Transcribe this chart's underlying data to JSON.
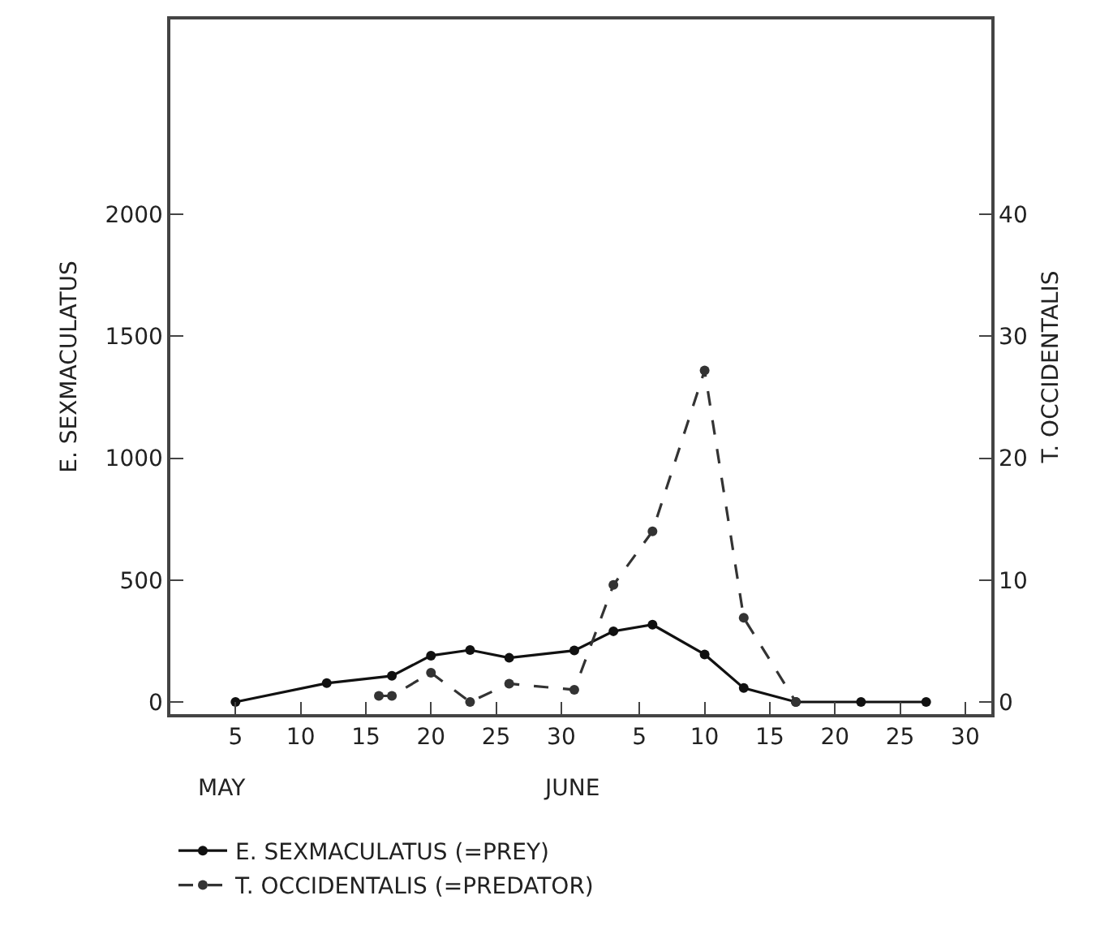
{
  "chart_data": {
    "type": "line",
    "ylabel": "E. SEXMACULATUS",
    "y2label": "T. OCCIDENTALIS",
    "annotations": [
      "MAY",
      "JUNE"
    ],
    "xlim": [
      "--04-30",
      "--07-02"
    ],
    "xticks": [
      {
        "value": "--05-05",
        "label": "5"
      },
      {
        "value": "--05-10",
        "label": "10"
      },
      {
        "value": "--05-15",
        "label": "15"
      },
      {
        "value": "--05-20",
        "label": "20"
      },
      {
        "value": "--05-25",
        "label": "25"
      },
      {
        "value": "--05-30",
        "label": "30"
      },
      {
        "value": "--06-05",
        "label": "5"
      },
      {
        "value": "--06-10",
        "label": "10"
      },
      {
        "value": "--06-15",
        "label": "15"
      },
      {
        "value": "--06-20",
        "label": "20"
      },
      {
        "value": "--06-25",
        "label": "25"
      },
      {
        "value": "--06-30",
        "label": "30"
      }
    ],
    "ylim": [
      -50,
      2800
    ],
    "yticks": [
      0,
      500,
      1000,
      1500,
      2000
    ],
    "y2lim": [
      -1,
      56
    ],
    "y2ticks": [
      0,
      10,
      20,
      30,
      40
    ],
    "grid": false,
    "legend": "bottom",
    "marker": "circle",
    "series": [
      {
        "name": "E. SEXMACULATUS (=PREY)",
        "color": "#111111",
        "line_style": "solid",
        "x": [
          "--05-05",
          "--05-12",
          "--05-17",
          "--05-20",
          "--05-23",
          "--05-26",
          "--05-31",
          "--06-03",
          "--06-06",
          "--06-10",
          "--06-13",
          "--06-17",
          "--06-22",
          "--06-27"
        ],
        "values": [
          0,
          77,
          107,
          190,
          213,
          181,
          211,
          290,
          317,
          195,
          57,
          0,
          0,
          0
        ]
      },
      {
        "name": "T. OCCIDENTALIS (=PREDATOR)",
        "color": "#333333",
        "line_style": "dashed",
        "axis": "y2",
        "x": [
          "--05-16",
          "--05-17",
          "--05-20",
          "--05-23",
          "--05-26",
          "--05-31",
          "--06-03",
          "--06-06",
          "--06-10",
          "--06-13",
          "--06-17"
        ],
        "values": [
          0.5,
          0.5,
          2.4,
          0,
          1.5,
          1.0,
          9.6,
          14.0,
          27.2,
          6.9,
          0
        ]
      }
    ]
  }
}
